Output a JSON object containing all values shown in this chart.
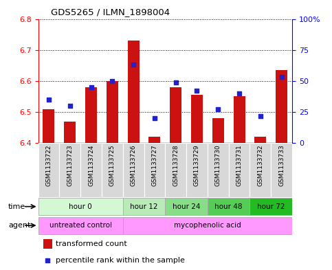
{
  "title": "GDS5265 / ILMN_1898004",
  "samples": [
    "GSM1133722",
    "GSM1133723",
    "GSM1133724",
    "GSM1133725",
    "GSM1133726",
    "GSM1133727",
    "GSM1133728",
    "GSM1133729",
    "GSM1133730",
    "GSM1133731",
    "GSM1133732",
    "GSM1133733"
  ],
  "transformed_count": [
    6.51,
    6.47,
    6.58,
    6.6,
    6.73,
    6.42,
    6.58,
    6.555,
    6.48,
    6.55,
    6.42,
    6.635
  ],
  "percentile_rank": [
    35,
    30,
    45,
    50,
    63,
    20,
    49,
    42,
    27,
    40,
    22,
    53
  ],
  "ylim_left": [
    6.4,
    6.8
  ],
  "ylim_right": [
    0,
    100
  ],
  "yticks_left": [
    6.4,
    6.5,
    6.6,
    6.7,
    6.8
  ],
  "yticks_right": [
    0,
    25,
    50,
    75,
    100
  ],
  "bar_color": "#cc1111",
  "dot_color": "#2222cc",
  "bar_bottom": 6.4,
  "time_group_data": [
    {
      "label": "hour 0",
      "start": 0,
      "end": 3,
      "color": "#d4f7d4"
    },
    {
      "label": "hour 12",
      "start": 4,
      "end": 5,
      "color": "#b8ebb8"
    },
    {
      "label": "hour 24",
      "start": 6,
      "end": 7,
      "color": "#88dd88"
    },
    {
      "label": "hour 48",
      "start": 8,
      "end": 9,
      "color": "#55cc55"
    },
    {
      "label": "hour 72",
      "start": 10,
      "end": 11,
      "color": "#22bb22"
    }
  ],
  "agent_group_data": [
    {
      "label": "untreated control",
      "start": 0,
      "end": 3,
      "color": "#ff99ff"
    },
    {
      "label": "mycophenolic acid",
      "start": 4,
      "end": 11,
      "color": "#ff99ff"
    }
  ],
  "legend_bar_label": "transformed count",
  "legend_dot_label": "percentile rank within the sample"
}
